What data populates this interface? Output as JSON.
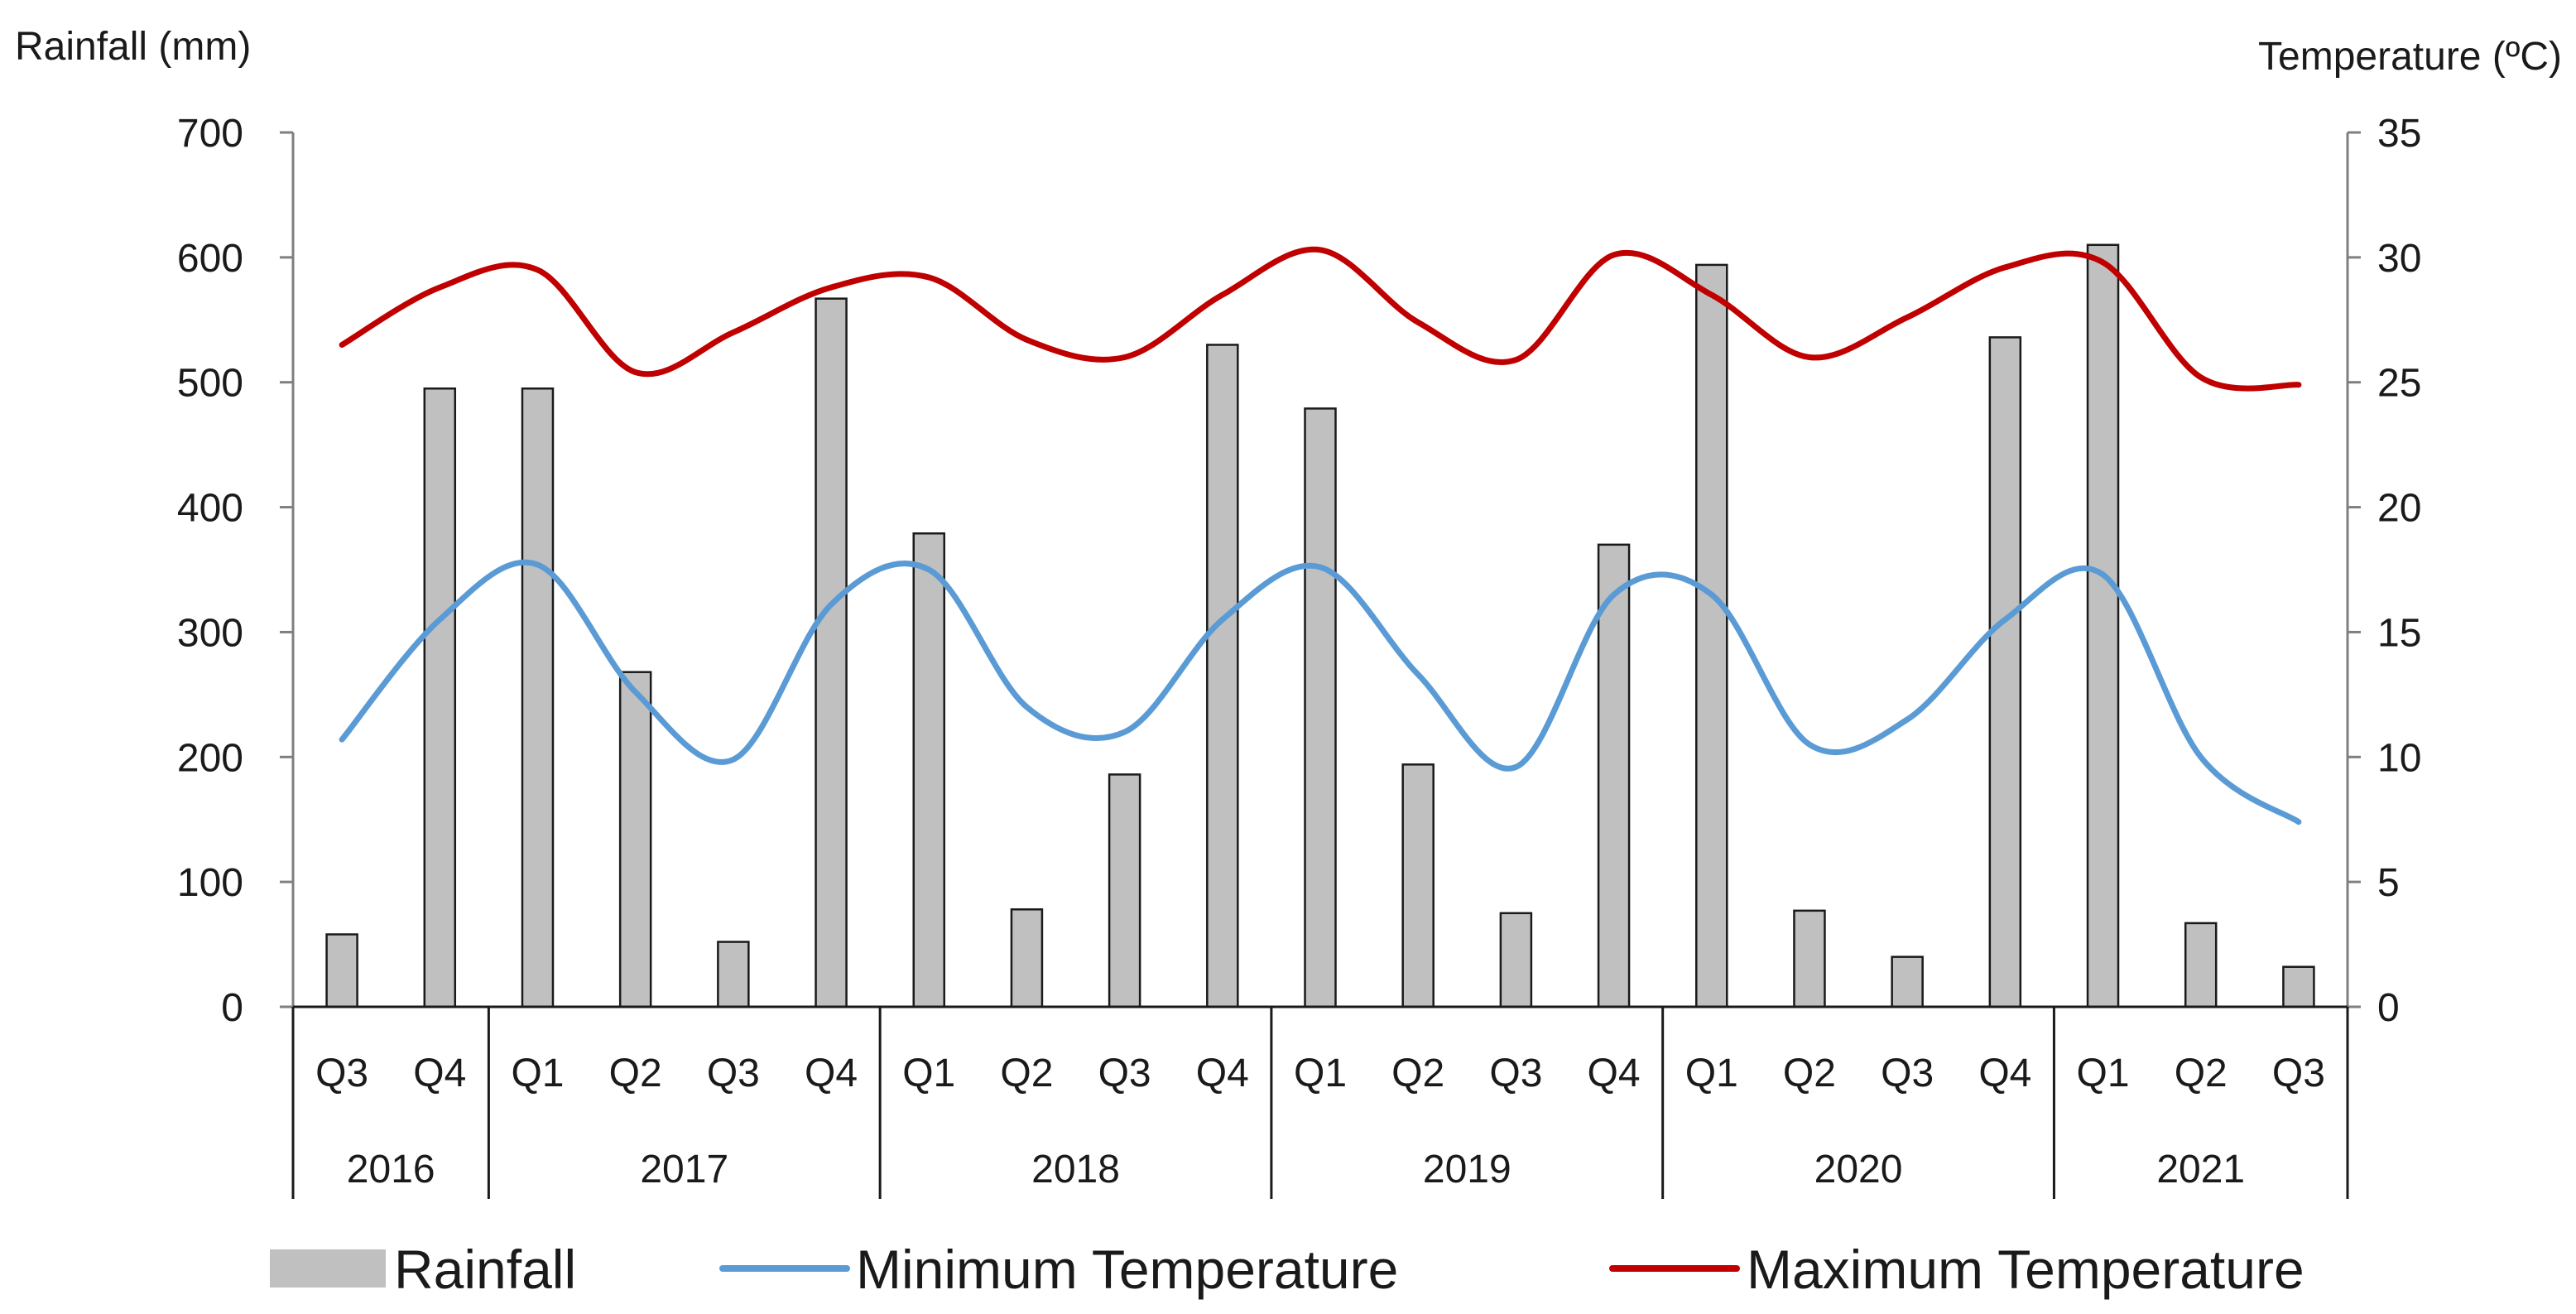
{
  "chart_data": {
    "type": "bar",
    "title": "",
    "y_left_label": "Rainfall (mm)",
    "y_right_label": "Temperature (ºC)",
    "y_left_ticks": [
      "0",
      "100",
      "200",
      "300",
      "400",
      "500",
      "600",
      "700"
    ],
    "y_right_ticks": [
      "0",
      "5",
      "10",
      "15",
      "20",
      "25",
      "30",
      "35"
    ],
    "ylim_left": [
      0,
      700
    ],
    "ylim_right": [
      0,
      35
    ],
    "quarters": [
      "Q3",
      "Q4",
      "Q1",
      "Q2",
      "Q3",
      "Q4",
      "Q1",
      "Q2",
      "Q3",
      "Q4",
      "Q1",
      "Q2",
      "Q3",
      "Q4",
      "Q1",
      "Q2",
      "Q3",
      "Q4",
      "Q1",
      "Q2",
      "Q3"
    ],
    "years": [
      {
        "label": "2016",
        "span": 2
      },
      {
        "label": "2017",
        "span": 4
      },
      {
        "label": "2018",
        "span": 4
      },
      {
        "label": "2019",
        "span": 4
      },
      {
        "label": "2020",
        "span": 4
      },
      {
        "label": "2021",
        "span": 3
      }
    ],
    "series": [
      {
        "name": "Rainfall",
        "kind": "bar",
        "axis": "left",
        "color": "#c0c0c0",
        "values": [
          58,
          495,
          495,
          268,
          52,
          567,
          379,
          78,
          186,
          530,
          479,
          194,
          75,
          370,
          594,
          77,
          40,
          536,
          610,
          67,
          32
        ]
      },
      {
        "name": "Minimum Temperature",
        "kind": "line",
        "axis": "right",
        "color": "#5b9bd5",
        "values": [
          10.7,
          15.5,
          17.7,
          12.6,
          9.9,
          16.1,
          17.5,
          12.0,
          11.0,
          15.5,
          17.6,
          13.3,
          9.6,
          16.5,
          16.5,
          10.5,
          11.5,
          15.5,
          17.3,
          10.0,
          7.4
        ]
      },
      {
        "name": "Maximum Temperature",
        "kind": "line",
        "axis": "right",
        "color": "#c00000",
        "values": [
          26.5,
          28.8,
          29.5,
          25.4,
          27.0,
          28.8,
          29.2,
          26.7,
          26.0,
          28.5,
          30.3,
          27.4,
          25.9,
          30.1,
          28.5,
          26.0,
          27.6,
          29.6,
          29.8,
          25.2,
          24.9
        ]
      }
    ],
    "legend": {
      "position": "bottom"
    }
  }
}
